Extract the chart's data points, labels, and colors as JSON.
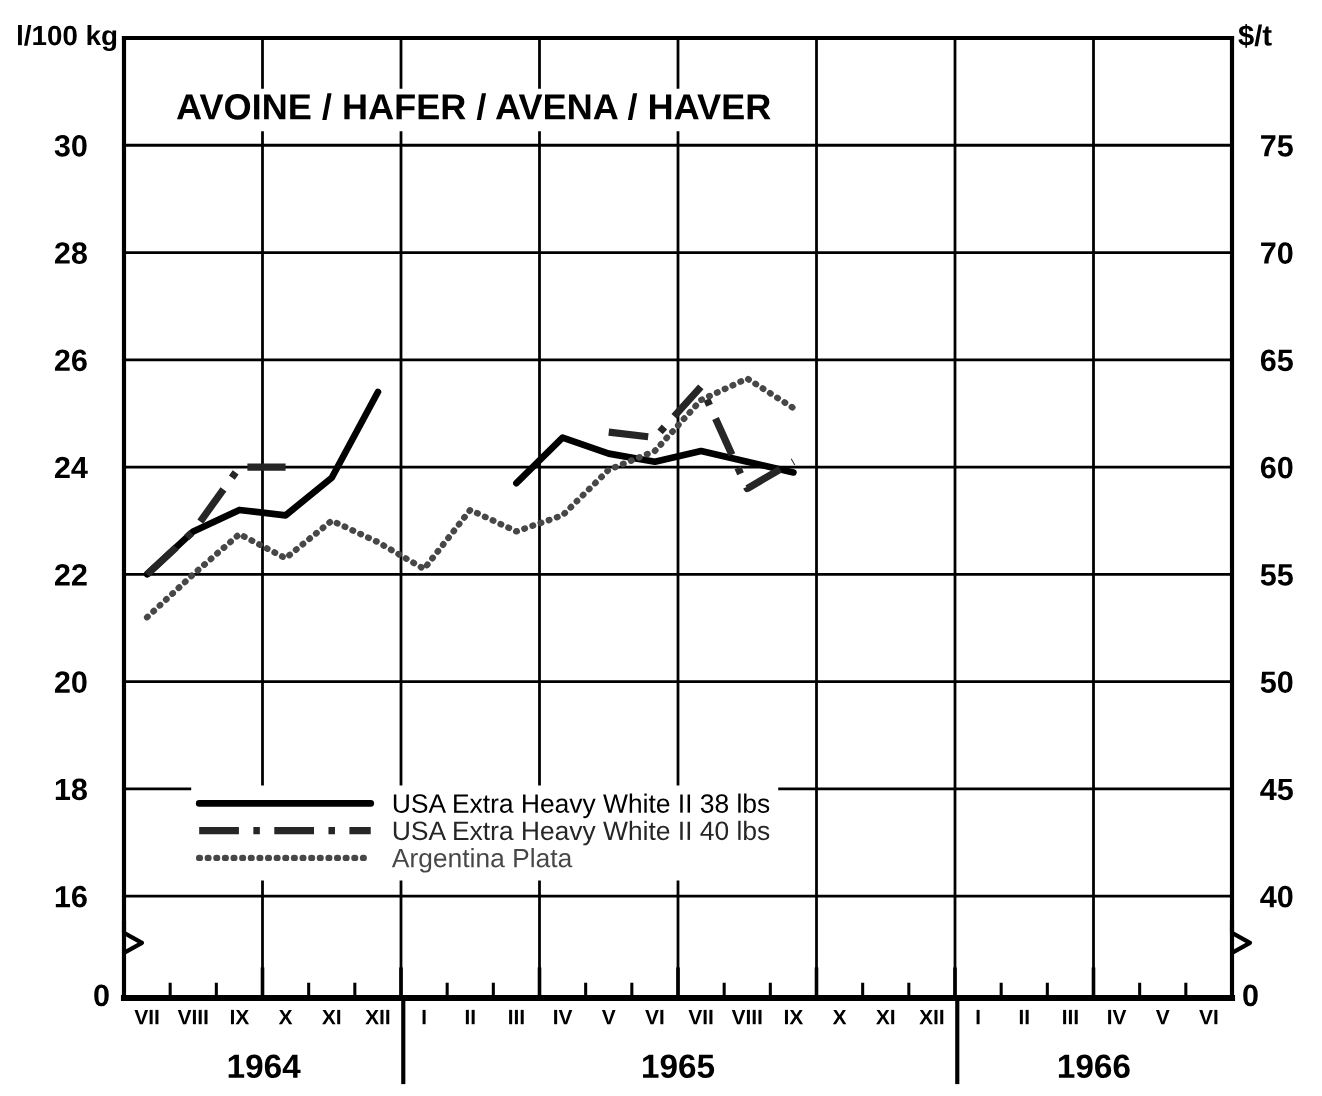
{
  "chart_data": {
    "type": "line",
    "title": "AVOINE / HAFER / AVENA / HAVER",
    "ylabel": "l/100 kg",
    "y2label": "$/t",
    "categories": [
      "VII",
      "VIII",
      "IX",
      "X",
      "XI",
      "XII",
      "I",
      "II",
      "III",
      "IV",
      "V",
      "VI",
      "VII",
      "VIII",
      "IX",
      "X",
      "XI",
      "XII",
      "I",
      "II",
      "III",
      "IV",
      "V",
      "VI"
    ],
    "series": [
      {
        "name": "USA Extra Heavy White II 38 lbs",
        "color": "#000000",
        "line_style": "solid",
        "values": [
          22.0,
          22.8,
          23.2,
          23.1,
          23.8,
          25.4,
          null,
          null,
          23.7,
          24.55,
          24.25,
          24.1,
          24.3,
          24.1,
          23.9,
          null,
          null,
          null,
          null,
          null,
          null,
          null,
          null,
          null
        ]
      },
      {
        "name": "USA Extra Heavy White II 40 lbs",
        "color": "#262626",
        "line_style": "dashdot",
        "values": [
          22.0,
          22.8,
          24.0,
          24.0,
          null,
          null,
          null,
          null,
          null,
          null,
          24.65,
          24.55,
          25.5,
          23.6,
          24.1,
          null,
          null,
          null,
          null,
          null,
          null,
          null,
          null,
          null
        ]
      },
      {
        "name": "Argentina Plata",
        "color": "#474747",
        "line_style": "dotted",
        "values": [
          21.2,
          22.0,
          22.75,
          22.3,
          23.0,
          22.6,
          22.1,
          23.2,
          22.8,
          23.1,
          23.95,
          24.3,
          25.25,
          25.65,
          25.1,
          null,
          null,
          null,
          null,
          null,
          null,
          null,
          null,
          null
        ]
      }
    ],
    "ylim": [
      14.1,
      32
    ],
    "yticks": [
      16,
      18,
      20,
      22,
      24,
      26,
      28,
      30
    ],
    "y2lim": [
      35.25,
      80
    ],
    "y2ticks": [
      40,
      45,
      50,
      55,
      60,
      65,
      70,
      75
    ],
    "x2lim": [
      "1964-07-01",
      "1966-07-01"
    ],
    "x2ticks": [
      {
        "value": "1964-10-01",
        "label": "1964"
      },
      {
        "value": "1965-01-01",
        "label": null
      },
      {
        "value": "1965-07-01",
        "label": "1965"
      },
      {
        "value": "1966-01-01",
        "label": null
      },
      {
        "value": "1966-04-01",
        "label": "1966"
      }
    ],
    "annotations": [
      "0",
      "0"
    ],
    "grid": true,
    "legend": "bottom left"
  }
}
